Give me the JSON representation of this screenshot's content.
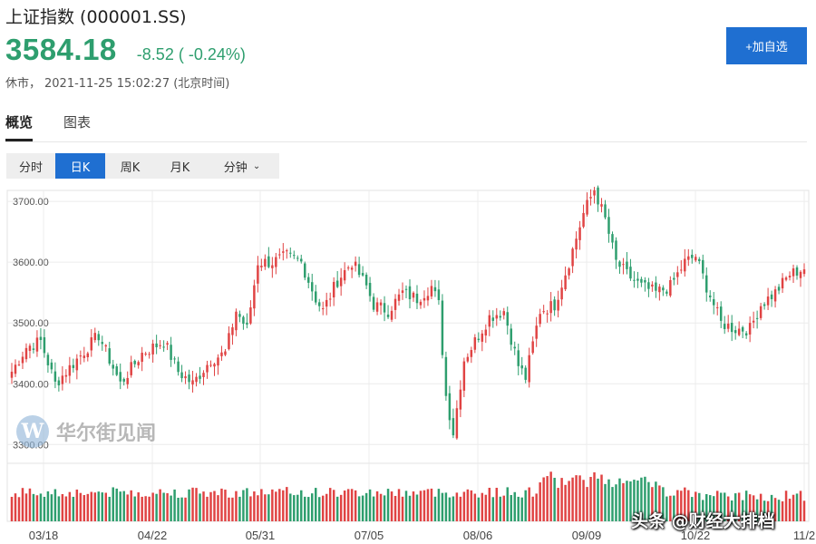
{
  "header": {
    "title": "上证指数 (000001.SS)",
    "price": "3584.18",
    "change": "-8.52 ( -0.24%)",
    "status": "休市，",
    "timestamp": "2021-11-25 15:02:27 (北京时间)",
    "watchlist_button": "+加自选",
    "accent_color": "#1f6fd1",
    "down_color": "#2e9e6e"
  },
  "tabs": [
    {
      "label": "概览",
      "active": true
    },
    {
      "label": "图表",
      "active": false
    }
  ],
  "periods": [
    {
      "label": "分时",
      "active": false
    },
    {
      "label": "日K",
      "active": true
    },
    {
      "label": "周K",
      "active": false
    },
    {
      "label": "月K",
      "active": false
    },
    {
      "label": "分钟",
      "active": false
    }
  ],
  "icons": {
    "dropdown": "chevron-down-icon",
    "watermark_logo": "W"
  },
  "watermark": {
    "logo_letter": "W",
    "text": "华尔街见闻"
  },
  "footer_watermark": "头条 @财经大排档",
  "chart_data": {
    "type": "candlestick",
    "title": "上证指数 日K",
    "up_color": "#e04343",
    "down_color": "#2e9e6e",
    "ylim": [
      3290,
      3730
    ],
    "yticks": [
      "3300.00",
      "3400.00",
      "3500.00",
      "3600.00",
      "3700.00"
    ],
    "xticks": [
      "03/18",
      "04/22",
      "05/31",
      "07/05",
      "08/06",
      "09/09",
      "10/22",
      "11/2"
    ],
    "close_anchors": [
      [
        0,
        3420
      ],
      [
        4,
        3460
      ],
      [
        8,
        3470
      ],
      [
        12,
        3400
      ],
      [
        18,
        3440
      ],
      [
        24,
        3480
      ],
      [
        30,
        3400
      ],
      [
        36,
        3450
      ],
      [
        42,
        3470
      ],
      [
        46,
        3420
      ],
      [
        50,
        3400
      ],
      [
        55,
        3440
      ],
      [
        59,
        3450
      ],
      [
        62,
        3520
      ],
      [
        65,
        3490
      ],
      [
        68,
        3600
      ],
      [
        72,
        3600
      ],
      [
        76,
        3610
      ],
      [
        80,
        3600
      ],
      [
        84,
        3540
      ],
      [
        86,
        3520
      ],
      [
        90,
        3570
      ],
      [
        94,
        3600
      ],
      [
        98,
        3560
      ],
      [
        100,
        3530
      ],
      [
        104,
        3520
      ],
      [
        108,
        3550
      ],
      [
        112,
        3540
      ],
      [
        116,
        3560
      ],
      [
        118,
        3530
      ],
      [
        120,
        3380
      ],
      [
        122,
        3320
      ],
      [
        125,
        3440
      ],
      [
        128,
        3470
      ],
      [
        132,
        3510
      ],
      [
        136,
        3520
      ],
      [
        140,
        3430
      ],
      [
        142,
        3410
      ],
      [
        146,
        3520
      ],
      [
        150,
        3530
      ],
      [
        154,
        3600
      ],
      [
        158,
        3680
      ],
      [
        161,
        3720
      ],
      [
        164,
        3670
      ],
      [
        167,
        3600
      ],
      [
        170,
        3580
      ],
      [
        174,
        3560
      ],
      [
        178,
        3550
      ],
      [
        182,
        3560
      ],
      [
        186,
        3600
      ],
      [
        189,
        3610
      ],
      [
        192,
        3560
      ],
      [
        196,
        3500
      ],
      [
        200,
        3490
      ],
      [
        204,
        3490
      ],
      [
        207,
        3530
      ],
      [
        211,
        3550
      ],
      [
        215,
        3580
      ],
      [
        219,
        3590
      ]
    ],
    "volume": {
      "baseline": "relative",
      "note": "daily volume bars, colored by candle direction"
    }
  }
}
